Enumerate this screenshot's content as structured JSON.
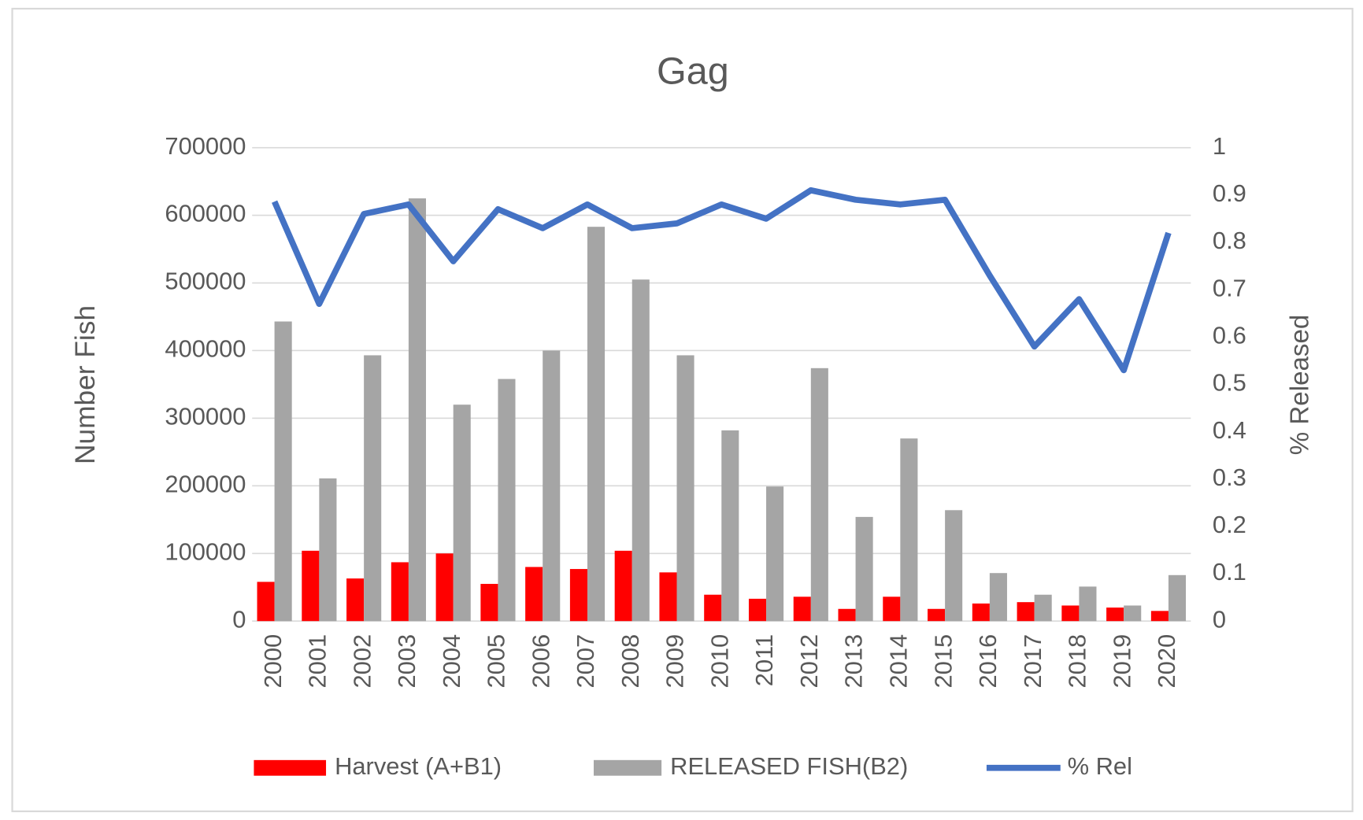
{
  "chart_data": {
    "type": "bar",
    "title": "Gag",
    "categories": [
      "2000",
      "2001",
      "2002",
      "2003",
      "2004",
      "2005",
      "2006",
      "2007",
      "2008",
      "2009",
      "2010",
      "2011",
      "2012",
      "2013",
      "2014",
      "2015",
      "2016",
      "2017",
      "2018",
      "2019",
      "2020"
    ],
    "series": [
      {
        "name": "Harvest (A+B1)",
        "color": "#ff0000",
        "values": [
          58000,
          104000,
          63000,
          87000,
          100000,
          55000,
          80000,
          77000,
          104000,
          72000,
          39000,
          33000,
          36000,
          18000,
          36000,
          18000,
          26000,
          28000,
          23000,
          20000,
          15000
        ]
      },
      {
        "name": "RELEASED FISH(B2)",
        "color": "#a5a5a5",
        "values": [
          443000,
          211000,
          393000,
          625000,
          320000,
          358000,
          400000,
          583000,
          505000,
          393000,
          282000,
          199000,
          374000,
          154000,
          270000,
          164000,
          71000,
          39000,
          51000,
          23000,
          68000
        ]
      },
      {
        "name": "% Rel",
        "color": "#4472c4",
        "type": "line",
        "axis": "y2",
        "values": [
          0.886,
          0.67,
          0.86,
          0.88,
          0.76,
          0.87,
          0.83,
          0.88,
          0.83,
          0.84,
          0.88,
          0.85,
          0.91,
          0.89,
          0.88,
          0.89,
          0.73,
          0.58,
          0.68,
          0.53,
          0.82
        ]
      }
    ],
    "y_label": "Number Fish",
    "y2_label": "% Released",
    "ylim": [
      0,
      700000
    ],
    "yticks": [
      0,
      100000,
      200000,
      300000,
      400000,
      500000,
      600000,
      700000
    ],
    "y2lim": [
      0,
      1
    ],
    "y2ticks": [
      0,
      0.1,
      0.2,
      0.3,
      0.4,
      0.5,
      0.6,
      0.7,
      0.8,
      0.9,
      1
    ],
    "grid": true,
    "legend": "bottom"
  }
}
